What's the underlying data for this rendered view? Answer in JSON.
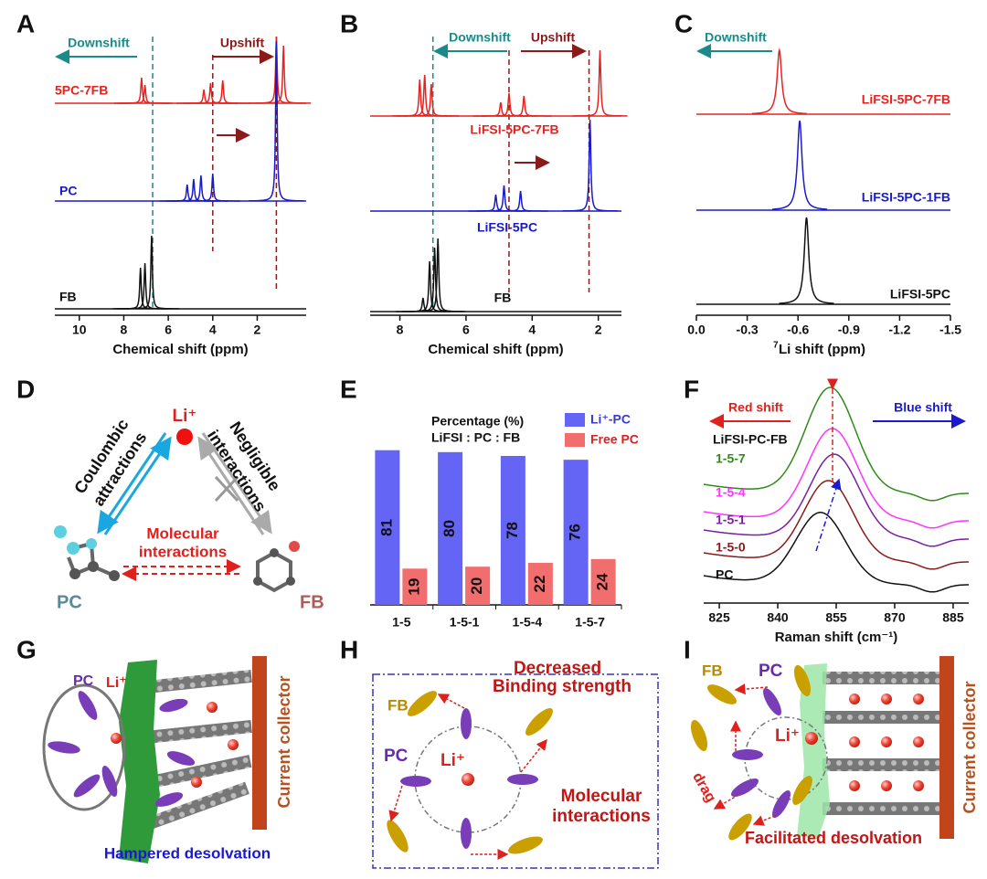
{
  "chart_data": [
    {
      "label": "A",
      "type": "nmr",
      "xlabel": "Chemical shift (ppm)",
      "xlim": [
        11.1,
        -0.2
      ],
      "xticks": [
        10,
        8,
        6,
        4,
        2
      ],
      "annotations": [
        "Downshift",
        "Upshift"
      ],
      "reference_lines": [
        6.7,
        4.0,
        1.14
      ],
      "series": [
        {
          "name": "5PC-7FB",
          "color": "#e8231f",
          "peaks": [
            7.2,
            7.05,
            4.4,
            4.1,
            3.55,
            1.14,
            0.82
          ],
          "heights": [
            28,
            20,
            15,
            22,
            25,
            73,
            63
          ]
        },
        {
          "name": "PC",
          "color": "#1a1acc",
          "peaks": [
            5.15,
            4.86,
            4.53,
            4.0,
            1.14
          ],
          "heights": [
            18,
            24,
            28,
            30,
            175
          ]
        },
        {
          "name": "FB",
          "color": "#111111",
          "peaks": [
            7.25,
            7.05,
            6.75
          ],
          "heights": [
            45,
            50,
            80
          ]
        }
      ]
    },
    {
      "label": "B",
      "type": "nmr",
      "xlabel": "Chemical shift (ppm)",
      "xlim": [
        8.9,
        1.3
      ],
      "xticks": [
        8,
        6,
        4,
        2
      ],
      "annotations": [
        "Downshift",
        "Upshift"
      ],
      "reference_lines": [
        7.0,
        4.7,
        2.28
      ],
      "series": [
        {
          "name": "LiFSI-5PC-7FB",
          "color": "#e8231f",
          "peaks": [
            7.4,
            7.25,
            7.05,
            4.95,
            4.7,
            4.25,
            1.95
          ],
          "heights": [
            40,
            45,
            35,
            15,
            25,
            22,
            72
          ]
        },
        {
          "name": "LiFSI-5PC",
          "color": "#1a1acc",
          "peaks": [
            5.1,
            4.85,
            4.35,
            2.25
          ],
          "heights": [
            18,
            28,
            22,
            100
          ]
        },
        {
          "name": "FB",
          "color": "#111111",
          "peaks": [
            7.3,
            7.1,
            6.95,
            6.85
          ],
          "heights": [
            15,
            55,
            70,
            80
          ]
        }
      ]
    },
    {
      "label": "C",
      "type": "nmr",
      "xlabel_sup": "7",
      "xlabel": "Li shift (ppm)",
      "xlim": [
        0,
        -1.5
      ],
      "xticks": [
        {
          "value": 0,
          "label": "0.0"
        },
        -0.3,
        -0.6,
        -0.9,
        -1.2,
        -1.5
      ],
      "annotations": [
        "Downshift"
      ],
      "series": [
        {
          "name": "LiFSI-5PC-7FB",
          "color": "#e8231f",
          "peaks": [
            -0.49
          ],
          "heights": [
            70
          ]
        },
        {
          "name": "LiFSI-5PC-1FB",
          "color": "#1a1acc",
          "peaks": [
            -0.61
          ],
          "heights": [
            98
          ]
        },
        {
          "name": "LiFSI-5PC",
          "color": "#111111",
          "peaks": [
            -0.65
          ],
          "heights": [
            95
          ]
        }
      ]
    },
    {
      "label": "E",
      "type": "bar",
      "legend_title": [
        "Percentage (%)",
        "LiFSI : PC : FB"
      ],
      "categories": [
        "1-5",
        "1-5-1",
        "1-5-4",
        "1-5-7"
      ],
      "ylim": [
        0,
        100
      ],
      "series": [
        {
          "name": "Li⁺-PC",
          "color": "#6464f5",
          "values": [
            81,
            80,
            78,
            76
          ]
        },
        {
          "name": "Free PC",
          "color": "#f26d6d",
          "values": [
            19,
            20,
            22,
            24
          ]
        }
      ]
    },
    {
      "label": "F",
      "type": "raman",
      "xlabel": "Raman shift (cm⁻¹)",
      "xlim": [
        821,
        889
      ],
      "xticks": [
        825,
        840,
        855,
        870,
        885
      ],
      "annotations": [
        "Red shift",
        "Blue shift"
      ],
      "series_title": "LiFSI-PC-FB",
      "series": [
        {
          "name": "1-5-7",
          "color": "#2e8b1a",
          "center": 853.5,
          "height": 115
        },
        {
          "name": "1-5-4",
          "color": "#ff33ff",
          "center": 854,
          "height": 100
        },
        {
          "name": "1-5-1",
          "color": "#7b1fa2",
          "center": 854.5,
          "height": 92
        },
        {
          "name": "1-5-0",
          "color": "#8b1a1a",
          "center": 853,
          "height": 88
        },
        {
          "name": "PC",
          "color": "#111111",
          "center": 851,
          "height": 78
        }
      ]
    }
  ],
  "diagrams": {
    "D": {
      "label": "D",
      "ion": "Li⁺",
      "left_link": [
        "Coulombic",
        "attractions"
      ],
      "right_link": [
        "Negligible",
        "interactions"
      ],
      "bottom_link": [
        "Molecular",
        "interactions"
      ],
      "left_molecule": "PC",
      "right_molecule": "FB"
    },
    "G": {
      "label": "G",
      "solvent": "PC",
      "ion": "Li⁺",
      "collector": "Current collector",
      "caption": "Hampered desolvation"
    },
    "H": {
      "label": "H",
      "diluent": "FB",
      "solvent": "PC",
      "ion": "Li⁺",
      "top_note": [
        "Decreased",
        "Binding strength"
      ],
      "bottom_note": [
        "Molecular",
        "interactions"
      ]
    },
    "I": {
      "label": "I",
      "diluent": "FB",
      "solvent": "PC",
      "ion": "Li⁺",
      "force": "drag",
      "collector": "Current collector",
      "caption": "Facilitated desolvation"
    }
  }
}
